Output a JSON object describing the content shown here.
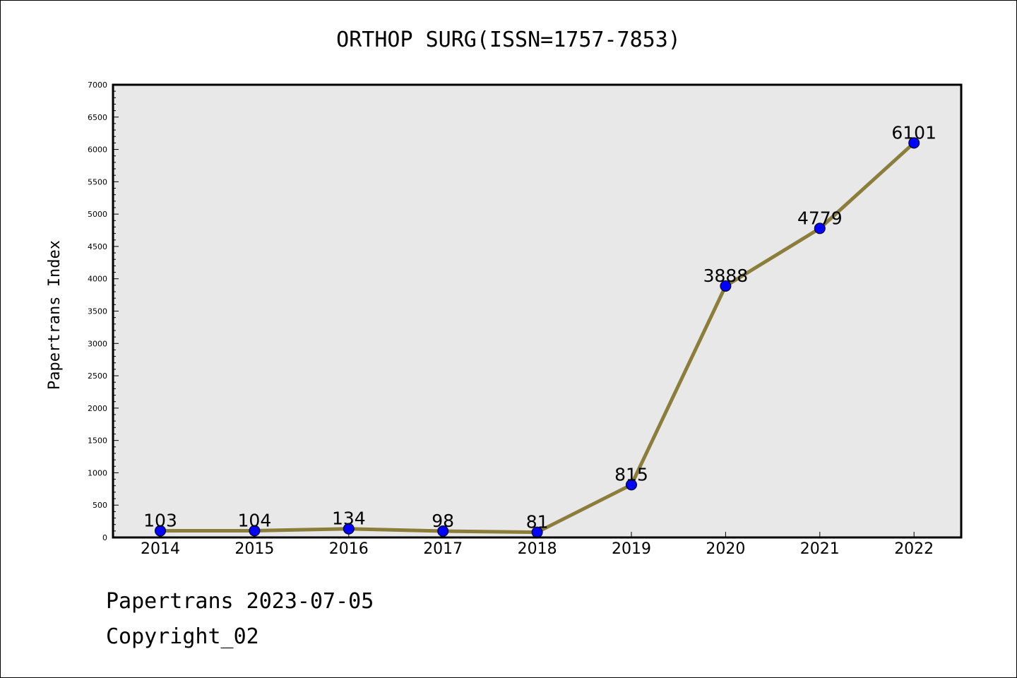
{
  "chart_data": {
    "type": "line",
    "title": "ORTHOP SURG(ISSN=1757-7853)",
    "xlabel": "",
    "ylabel": "Papertrans Index",
    "categories": [
      "2014",
      "2015",
      "2016",
      "2017",
      "2018",
      "2019",
      "2020",
      "2021",
      "2022"
    ],
    "series": [
      {
        "values": [
          103,
          104,
          134,
          98,
          81,
          815,
          3888,
          4779,
          6101
        ]
      }
    ],
    "data_labels": [
      "103",
      "104",
      "134",
      "98",
      "81",
      "815",
      "3888",
      "4779",
      "6101"
    ],
    "ylim": [
      0,
      7000
    ],
    "yticks": [
      0,
      500,
      1000,
      1500,
      2000,
      2500,
      3000,
      3500,
      4000,
      4500,
      5000,
      5500,
      6000,
      6500,
      7000
    ],
    "grid": false,
    "colors": {
      "line": "#8b7d3a",
      "marker": "#0000ff",
      "plot_background": "#e8e8e8"
    }
  },
  "footer": {
    "line1": "Papertrans 2023-07-05",
    "line2": "Copyright_02"
  }
}
